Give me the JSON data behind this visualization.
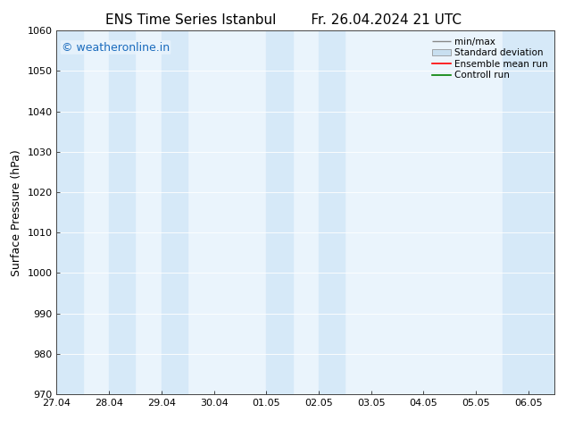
{
  "title_left": "ENS Time Series Istanbul",
  "title_right": "Fr. 26.04.2024 21 UTC",
  "ylabel": "Surface Pressure (hPa)",
  "ylim": [
    970,
    1060
  ],
  "yticks": [
    970,
    980,
    990,
    1000,
    1010,
    1020,
    1030,
    1040,
    1050,
    1060
  ],
  "xlim_start": 0.0,
  "xlim_end": 9.5,
  "xtick_positions": [
    0,
    1,
    2,
    3,
    4,
    5,
    6,
    7,
    8,
    9
  ],
  "xtick_labels": [
    "27.04",
    "28.04",
    "29.04",
    "30.04",
    "01.05",
    "02.05",
    "03.05",
    "04.05",
    "05.05",
    "06.05"
  ],
  "shaded_bands": [
    {
      "x_start": 0.0,
      "x_end": 0.5
    },
    {
      "x_start": 1.0,
      "x_end": 1.5
    },
    {
      "x_start": 2.0,
      "x_end": 2.5
    },
    {
      "x_start": 4.0,
      "x_end": 4.5
    },
    {
      "x_start": 5.0,
      "x_end": 5.5
    },
    {
      "x_start": 8.5,
      "x_end": 9.0
    },
    {
      "x_start": 9.0,
      "x_end": 9.5
    }
  ],
  "band_color": "#d6e9f8",
  "plot_bg_color": "#eaf4fc",
  "watermark_text": "© weatheronline.in",
  "watermark_color": "#1a6bbd",
  "bg_color": "#ffffff",
  "font_size_title": 11,
  "font_size_axis": 9,
  "font_size_tick": 8,
  "font_size_legend": 7.5,
  "font_size_watermark": 9
}
